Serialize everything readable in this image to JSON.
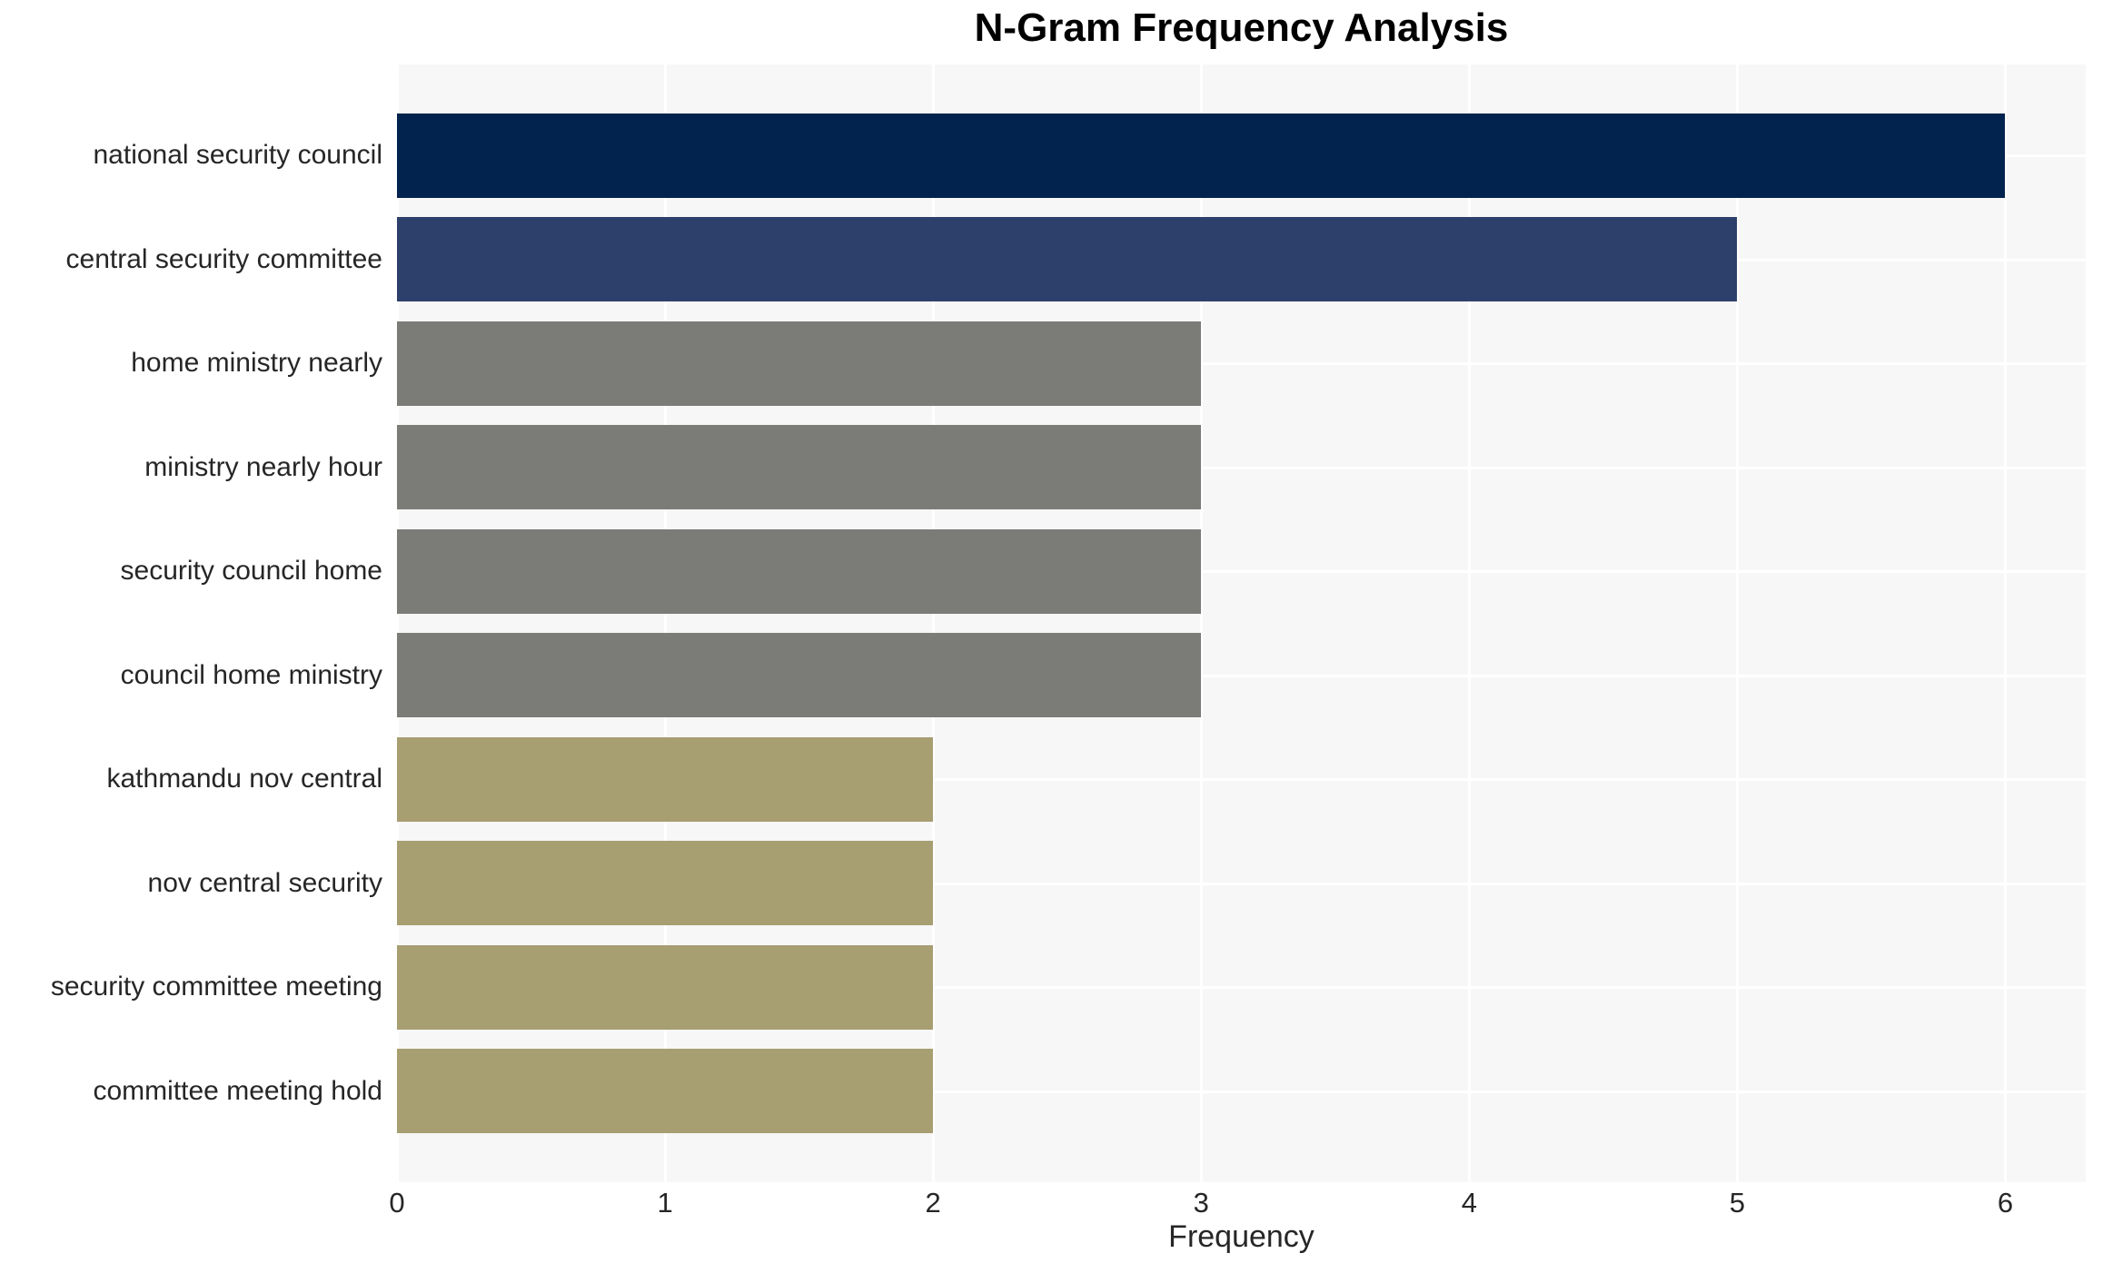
{
  "chart_data": {
    "type": "bar",
    "orientation": "horizontal",
    "title": "N-Gram Frequency Analysis",
    "xlabel": "Frequency",
    "ylabel": "",
    "categories": [
      "national security council",
      "central security committee",
      "home ministry nearly",
      "ministry nearly hour",
      "security council home",
      "council home ministry",
      "kathmandu nov central",
      "nov central security",
      "security committee meeting",
      "committee meeting hold"
    ],
    "values": [
      6,
      5,
      3,
      3,
      3,
      3,
      2,
      2,
      2,
      2
    ],
    "bar_colors": [
      "#02234d",
      "#2d3f6b",
      "#7b7b78",
      "#7b7b78",
      "#7b7b78",
      "#7b7b78",
      "#a79e72",
      "#a79e72",
      "#a79e72",
      "#a79e72"
    ],
    "xticks": [
      "0",
      "1",
      "2",
      "3",
      "4",
      "5",
      "6"
    ],
    "xlim": [
      0,
      6.3
    ],
    "grid": true,
    "legend": "none",
    "plot_background": "#f7f7f7",
    "gridline_color": "#ffffff",
    "page_background": "#ffffff",
    "text_color": "#262626",
    "title_color": "#000000"
  }
}
